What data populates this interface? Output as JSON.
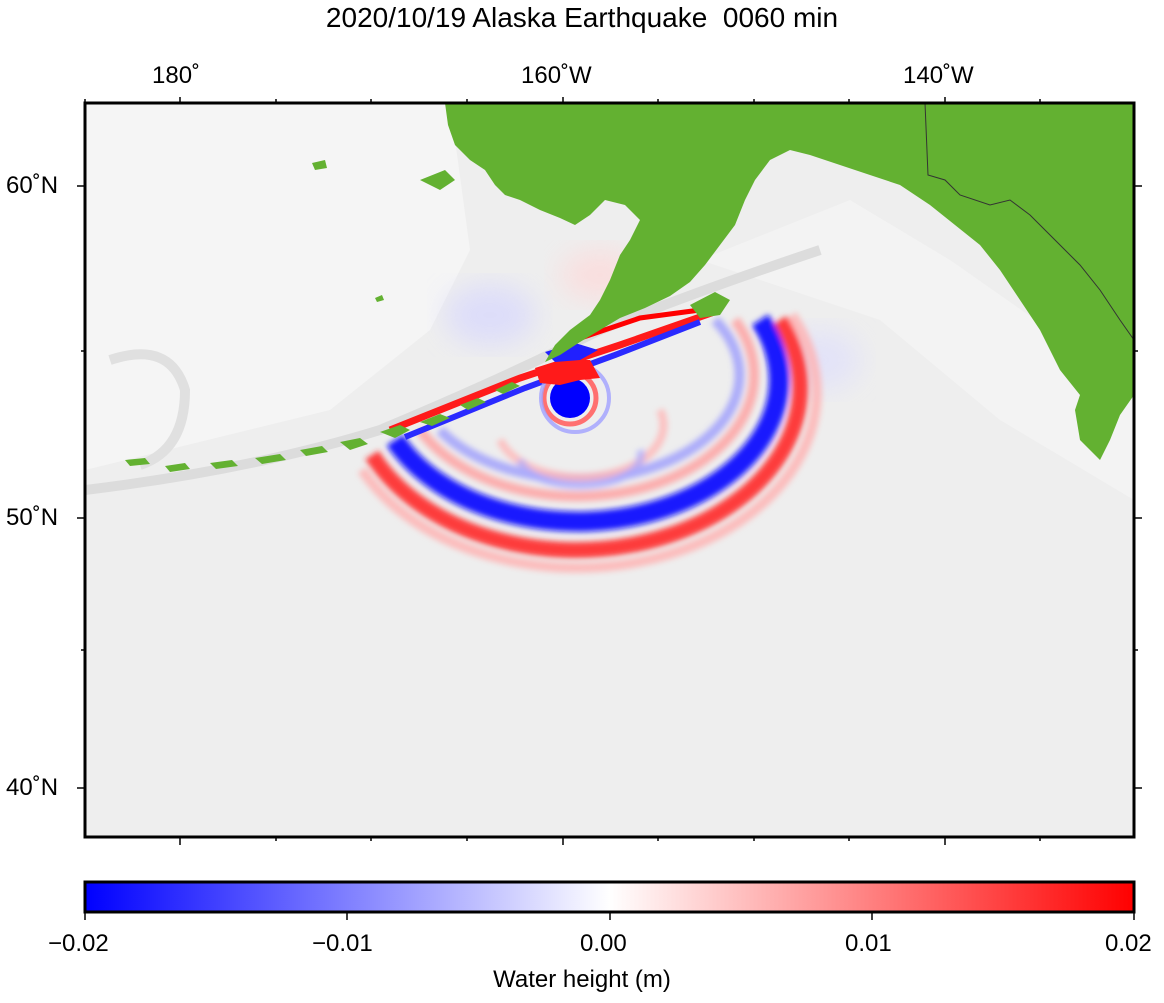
{
  "title": "2020/10/19 Alaska Earthquake  0060 min",
  "map": {
    "top_labels": [
      "180˚",
      "160˚W",
      "140˚W"
    ],
    "left_labels": [
      "60˚N",
      "50˚N",
      "40˚N"
    ],
    "land_color": "#63b131",
    "ocean_color": "#eeeeee",
    "wave_positive_color": "#ff0000",
    "wave_negative_color": "#0000ff"
  },
  "colorbar": {
    "ticks": [
      "−0.02",
      "−0.01",
      "0.00",
      "0.01",
      "0.02"
    ],
    "label": "Water height (m)",
    "colors": [
      "#0000ff",
      "#ffffff",
      "#ff0000"
    ]
  }
}
